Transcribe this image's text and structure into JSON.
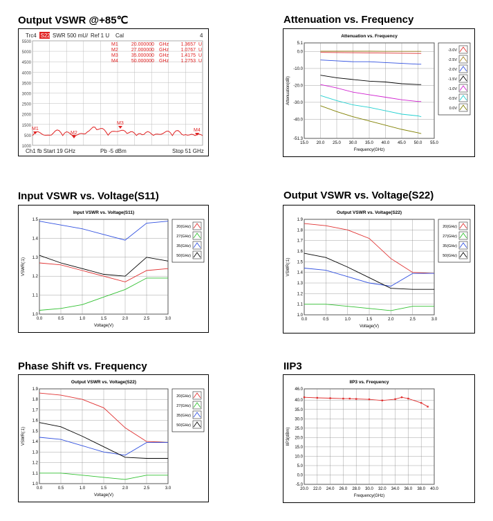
{
  "panels": [
    {
      "title": "Output VSWR @+85℃"
    },
    {
      "title": "Attenuation vs. Frequency"
    },
    {
      "title": "Input VSWR vs. Voltage(S11)"
    },
    {
      "title": "Output VSWR vs. Voltage(S22)"
    },
    {
      "title": "Phase Shift vs. Frequency"
    },
    {
      "title": "IIP3"
    }
  ],
  "vna": {
    "header": {
      "trace": "Trc4",
      "param": "S22",
      "format": "SWR",
      "scale": "500 mU/",
      "ref": "Ref 1 U",
      "cal": "Cal",
      "channel_num": "4"
    },
    "markers": [
      {
        "id": "M1",
        "freq": "20.000000",
        "unit": "GHz",
        "value": "1.3657",
        "vunit": "U"
      },
      {
        "id": "M2",
        "freq": "27.000000",
        "unit": "GHz",
        "value": "1.0767",
        "vunit": "U"
      },
      {
        "id": "M3",
        "freq": "35.000000",
        "unit": "GHz",
        "value": "1.4175",
        "vunit": "U"
      },
      {
        "id": "M4",
        "freq": "50.000000",
        "unit": "GHz",
        "value": "1.2753",
        "vunit": "U"
      }
    ],
    "ylabels": [
      "5500",
      "5000",
      "4500",
      "4000",
      "3500",
      "3000",
      "2500",
      "2000",
      "1500",
      "500",
      "1000"
    ],
    "footer": {
      "left": "Ch1  fb  Start  19 GHz",
      "mid": "Pb  -5 dBm",
      "right": "Stop  51 GHz"
    },
    "colors": {
      "trace": "#e02020",
      "text": "#e02020",
      "marker": "#e02020"
    }
  },
  "chart_data": [
    {
      "type": "line",
      "title": "Attenuation vs. Frequency",
      "xlabel": "Frequency(GHz)",
      "ylabel": "Attenuation(dB)",
      "xlim": [
        15.0,
        55.0
      ],
      "ylim": [
        -51.3,
        5.1
      ],
      "xticks": [
        "15.0",
        "20.0",
        "25.0",
        "30.0",
        "35.0",
        "40.0",
        "45.0",
        "50.0",
        "55.0"
      ],
      "yticks": [
        "5.1",
        "0.0",
        "-10.0",
        "-20.0",
        "-30.0",
        "-40.0",
        "-51.3"
      ],
      "ytick_values": [
        5.1,
        0,
        -10,
        -20,
        -30,
        -40,
        -51.3
      ],
      "x": [
        20,
        25,
        30,
        35,
        40,
        45,
        50,
        51
      ],
      "series": [
        {
          "name": "-3.0V",
          "color": "#e03030",
          "values": [
            -0.5,
            -0.6,
            -0.7,
            -0.8,
            -0.9,
            -1.0,
            -1.1,
            -1.1
          ]
        },
        {
          "name": "-2.5V",
          "color": "#a08020",
          "values": [
            0.2,
            0.2,
            0.2,
            0.2,
            0.1,
            0.1,
            0.1,
            0.1
          ]
        },
        {
          "name": "-2.0V",
          "color": "#3050e0",
          "values": [
            -5,
            -5.5,
            -6,
            -6,
            -6.5,
            -7,
            -7.5,
            -7.5
          ]
        },
        {
          "name": "-1.5V",
          "color": "#000000",
          "values": [
            -14,
            -15.5,
            -16.5,
            -17.5,
            -18,
            -19,
            -19.5,
            -19.5
          ]
        },
        {
          "name": "-1.0V",
          "color": "#d020d0",
          "values": [
            -19.5,
            -21.5,
            -24,
            -25.5,
            -27,
            -28.5,
            -29.5,
            -29.5
          ]
        },
        {
          "name": "-0.5V",
          "color": "#20d0d0",
          "values": [
            -26,
            -29,
            -31.5,
            -33,
            -35,
            -37,
            -38,
            -38.5
          ]
        },
        {
          "name": "0.0V",
          "color": "#808000",
          "values": [
            -32,
            -35.5,
            -38.5,
            -41,
            -43.5,
            -46,
            -48,
            -48.5
          ]
        }
      ],
      "legend": "right"
    },
    {
      "type": "line",
      "title": "Input VSWR vs. Voltage(S11)",
      "xlabel": "Voltage(V)",
      "ylabel": "VSWR(:1)",
      "xlim": [
        0,
        3
      ],
      "ylim": [
        1.0,
        1.5
      ],
      "xticks": [
        "0.0",
        "0.5",
        "1.0",
        "1.5",
        "2.0",
        "2.5",
        "3.0"
      ],
      "yticks": [
        "1.0",
        "1.1",
        "1.2",
        "1.3",
        "1.4",
        "1.5"
      ],
      "ytick_values": [
        1.0,
        1.1,
        1.2,
        1.3,
        1.4,
        1.5
      ],
      "x": [
        0,
        0.5,
        1.0,
        1.5,
        2.0,
        2.5,
        3.0
      ],
      "series": [
        {
          "name": "20(GHz)",
          "color": "#e03030",
          "values": [
            1.27,
            1.26,
            1.23,
            1.2,
            1.17,
            1.23,
            1.24
          ]
        },
        {
          "name": "27(GHz)",
          "color": "#30c030",
          "values": [
            1.02,
            1.03,
            1.05,
            1.09,
            1.13,
            1.19,
            1.19
          ]
        },
        {
          "name": "35(GHz)",
          "color": "#3050e0",
          "values": [
            1.49,
            1.47,
            1.45,
            1.42,
            1.39,
            1.48,
            1.49
          ]
        },
        {
          "name": "50(GHz)",
          "color": "#000000",
          "values": [
            1.31,
            1.27,
            1.24,
            1.21,
            1.2,
            1.3,
            1.28
          ]
        }
      ],
      "legend": "right"
    },
    {
      "type": "line",
      "title": "Output VSWR vs. Voltage(S22)",
      "xlabel": "Voltage(V)",
      "ylabel": "VSWR(:1)",
      "xlim": [
        0,
        3
      ],
      "ylim": [
        1.0,
        1.9
      ],
      "xticks": [
        "0.0",
        "0.5",
        "1.0",
        "1.5",
        "2.0",
        "2.5",
        "3.0"
      ],
      "yticks": [
        "1.0",
        "1.1",
        "1.2",
        "1.3",
        "1.4",
        "1.5",
        "1.6",
        "1.7",
        "1.8",
        "1.9"
      ],
      "ytick_values": [
        1.0,
        1.1,
        1.2,
        1.3,
        1.4,
        1.5,
        1.6,
        1.7,
        1.8,
        1.9
      ],
      "x": [
        0,
        0.5,
        1.0,
        1.5,
        2.0,
        2.5,
        3.0
      ],
      "series": [
        {
          "name": "20(GHz)",
          "color": "#e03030",
          "values": [
            1.86,
            1.84,
            1.8,
            1.72,
            1.53,
            1.4,
            1.39
          ]
        },
        {
          "name": "27(GHz)",
          "color": "#30c030",
          "values": [
            1.1,
            1.1,
            1.08,
            1.06,
            1.04,
            1.08,
            1.08
          ]
        },
        {
          "name": "35(GHz)",
          "color": "#3050e0",
          "values": [
            1.44,
            1.42,
            1.36,
            1.3,
            1.27,
            1.39,
            1.39
          ]
        },
        {
          "name": "50(GHz)",
          "color": "#000000",
          "values": [
            1.58,
            1.54,
            1.45,
            1.35,
            1.25,
            1.24,
            1.24
          ]
        }
      ],
      "legend": "right"
    },
    {
      "type": "line",
      "title": "Output VSWR vs. Voltage(S22)",
      "xlabel": "Voltage(V)",
      "ylabel": "VSWR(:1)",
      "xlim": [
        0,
        3
      ],
      "ylim": [
        1.0,
        1.9
      ],
      "xticks": [
        "0.0",
        "0.5",
        "1.0",
        "1.5",
        "2.0",
        "2.5",
        "3.0"
      ],
      "yticks": [
        "1.0",
        "1.1",
        "1.2",
        "1.3",
        "1.4",
        "1.5",
        "1.6",
        "1.7",
        "1.8",
        "1.9"
      ],
      "ytick_values": [
        1.0,
        1.1,
        1.2,
        1.3,
        1.4,
        1.5,
        1.6,
        1.7,
        1.8,
        1.9
      ],
      "x": [
        0,
        0.5,
        1.0,
        1.5,
        2.0,
        2.5,
        3.0
      ],
      "series": [
        {
          "name": "20(GHz)",
          "color": "#e03030",
          "values": [
            1.86,
            1.84,
            1.8,
            1.72,
            1.53,
            1.4,
            1.39
          ]
        },
        {
          "name": "27(GHz)",
          "color": "#30c030",
          "values": [
            1.1,
            1.1,
            1.08,
            1.06,
            1.04,
            1.08,
            1.08
          ]
        },
        {
          "name": "35(GHz)",
          "color": "#3050e0",
          "values": [
            1.44,
            1.42,
            1.36,
            1.3,
            1.27,
            1.39,
            1.39
          ]
        },
        {
          "name": "50(GHz)",
          "color": "#000000",
          "values": [
            1.58,
            1.54,
            1.45,
            1.35,
            1.25,
            1.24,
            1.24
          ]
        }
      ],
      "legend": "right"
    },
    {
      "type": "line",
      "title": "IIP3 vs. Frequency",
      "xlabel": "Frequency(GHz)",
      "ylabel": "IIP3(dBm)",
      "xlim": [
        20.0,
        40.0
      ],
      "ylim": [
        -5.0,
        46.0
      ],
      "xticks": [
        "20.0",
        "22.0",
        "24.0",
        "26.0",
        "28.0",
        "30.0",
        "32.0",
        "34.0",
        "36.0",
        "38.0",
        "40.0"
      ],
      "yticks": [
        "46.0",
        "40.0",
        "35.0",
        "30.0",
        "25.0",
        "20.0",
        "15.0",
        "10.0",
        "5.0",
        "0.0",
        "-5.0"
      ],
      "ytick_values": [
        46,
        40,
        35,
        30,
        25,
        20,
        15,
        10,
        5,
        0,
        -5
      ],
      "x": [
        20,
        22,
        24,
        26,
        27,
        28,
        30,
        32,
        34,
        35,
        36,
        38,
        39
      ],
      "series": [
        {
          "name": "",
          "color": "#e03030",
          "values": [
            41.5,
            41.2,
            41,
            40.8,
            40.8,
            40.6,
            40.4,
            39.8,
            40.5,
            41.5,
            40.8,
            38.5,
            36.5
          ]
        }
      ]
    }
  ]
}
